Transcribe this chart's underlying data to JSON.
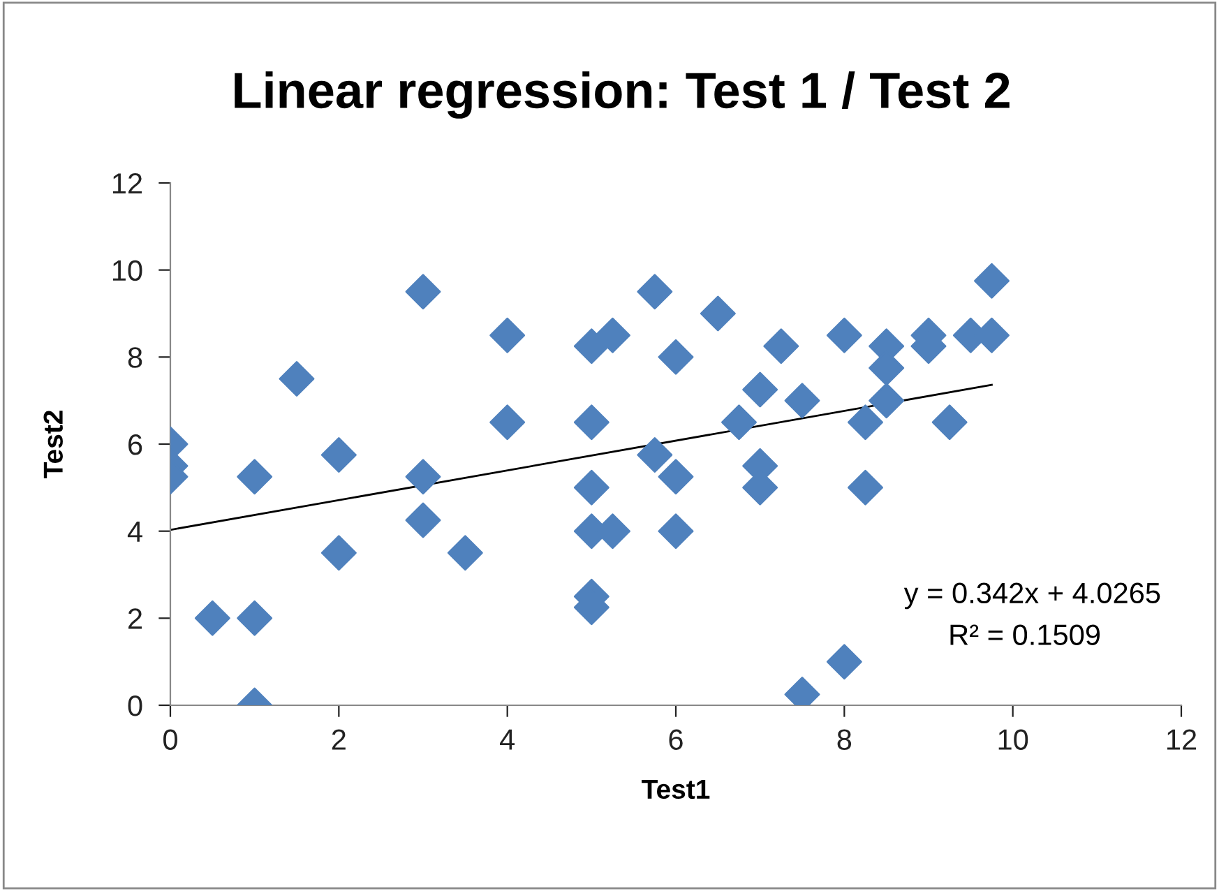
{
  "chart_data": {
    "type": "scatter",
    "title": "Linear regression: Test 1 / Test 2",
    "xlabel": "Test1",
    "ylabel": "Test2",
    "xlim": [
      0,
      12
    ],
    "xticks": [
      0,
      2,
      4,
      6,
      8,
      10,
      12
    ],
    "ylim": [
      0,
      12
    ],
    "yticks": [
      0,
      2,
      4,
      6,
      8,
      10,
      12
    ],
    "grid": false,
    "legend": false,
    "series": [
      {
        "color": "#4f81bd",
        "marker": "diamond",
        "x": [
          0,
          0,
          0,
          0.5,
          1,
          1,
          1,
          1.5,
          2,
          2,
          3,
          3,
          3,
          3.5,
          4,
          4,
          5,
          5.25,
          5,
          5,
          5,
          5.25,
          5,
          5,
          5.75,
          5.75,
          6,
          6,
          6,
          6.5,
          6.75,
          7,
          7,
          7,
          7.25,
          7.5,
          7.5,
          8,
          8,
          8.25,
          8.25,
          8.5,
          8.5,
          8.5,
          9,
          9,
          9.25,
          9.5,
          9.75,
          9.75
        ],
        "values": [
          6,
          5.5,
          5.25,
          2,
          5.25,
          2,
          0,
          7.5,
          5.75,
          3.5,
          9.5,
          5.25,
          4.25,
          3.5,
          8.5,
          6.5,
          8.25,
          8.5,
          6.5,
          5,
          4,
          4,
          2.5,
          2.25,
          9.5,
          5.75,
          8,
          5.25,
          4,
          9,
          6.5,
          7.25,
          5.5,
          5,
          8.25,
          7,
          0.25,
          8.5,
          1,
          6.5,
          5,
          8.25,
          7.75,
          7,
          8.5,
          8.25,
          6.5,
          8.5,
          9.75,
          8.5
        ]
      },
      {
        "type": "line",
        "color": "#000000",
        "marker": "none",
        "line_style": "solid",
        "x": [
          0,
          9.75
        ],
        "values": [
          4.03,
          7.36
        ]
      }
    ],
    "annotations": [
      "y = 0.342x + 4.0265",
      "R² = 0.1509"
    ]
  }
}
